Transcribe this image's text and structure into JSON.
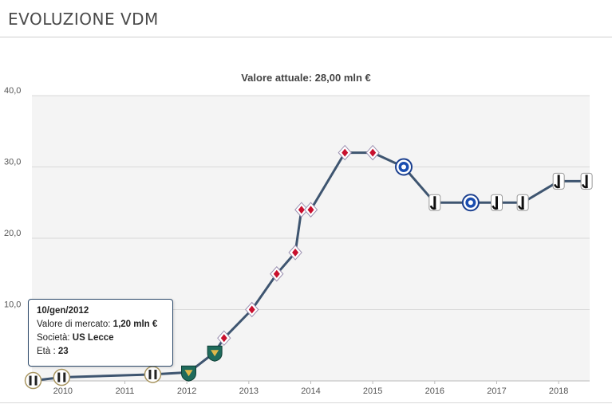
{
  "header": {
    "title": "EVOLUZIONE VDM"
  },
  "chart_data": {
    "type": "line",
    "title": "Valore attuale: 28,00 mln €",
    "xlabel": "",
    "ylabel": "",
    "ylim": [
      0,
      40
    ],
    "xlim": [
      2009.5,
      2018.5
    ],
    "grid": true,
    "y_ticks": [
      {
        "value": 10,
        "label": "10,0"
      },
      {
        "value": 20,
        "label": "20,0"
      },
      {
        "value": 30,
        "label": "30,0"
      },
      {
        "value": 40,
        "label": "40,0"
      }
    ],
    "x_ticks": [
      {
        "value": 2010,
        "label": "2010"
      },
      {
        "value": 2011,
        "label": "2011"
      },
      {
        "value": 2012,
        "label": "2012"
      },
      {
        "value": 2013,
        "label": "2013"
      },
      {
        "value": 2014,
        "label": "2014"
      },
      {
        "value": 2015,
        "label": "2015"
      },
      {
        "value": 2016,
        "label": "2016"
      },
      {
        "value": 2017,
        "label": "2017"
      },
      {
        "value": 2018,
        "label": "2018"
      }
    ],
    "colors": {
      "line": "#3e5570",
      "grid": "#d9d9d9",
      "plot_bg": "#f4f4f4"
    },
    "points": [
      {
        "x": 2009.52,
        "y": 0.05,
        "club": "udinese"
      },
      {
        "x": 2009.98,
        "y": 0.5,
        "club": "udinese"
      },
      {
        "x": 2011.45,
        "y": 0.9,
        "club": "udinese"
      },
      {
        "x": 2012.03,
        "y": 1.2,
        "club": "lecce"
      },
      {
        "x": 2012.45,
        "y": 4.0,
        "club": "lecce"
      },
      {
        "x": 2012.6,
        "y": 6.0,
        "club": "fiorentina"
      },
      {
        "x": 2013.05,
        "y": 10.0,
        "club": "fiorentina"
      },
      {
        "x": 2013.45,
        "y": 15.0,
        "club": "fiorentina"
      },
      {
        "x": 2013.75,
        "y": 18.0,
        "club": "fiorentina"
      },
      {
        "x": 2013.85,
        "y": 24.0,
        "club": "fiorentina"
      },
      {
        "x": 2014.0,
        "y": 24.0,
        "club": "fiorentina"
      },
      {
        "x": 2014.55,
        "y": 32.0,
        "club": "fiorentina"
      },
      {
        "x": 2015.0,
        "y": 32.0,
        "club": "fiorentina"
      },
      {
        "x": 2015.5,
        "y": 30.0,
        "club": "chelsea"
      },
      {
        "x": 2016.0,
        "y": 25.0,
        "club": "juventus"
      },
      {
        "x": 2016.58,
        "y": 25.0,
        "club": "chelsea"
      },
      {
        "x": 2017.0,
        "y": 25.0,
        "club": "juventus"
      },
      {
        "x": 2017.42,
        "y": 25.0,
        "club": "juventus"
      },
      {
        "x": 2018.0,
        "y": 28.0,
        "club": "juventus"
      },
      {
        "x": 2018.45,
        "y": 28.0,
        "club": "juventus"
      }
    ],
    "tooltip": {
      "date": "10/gen/2012",
      "value_label": "Valore di mercato:",
      "value": "1,20 mln €",
      "club_label": "Società:",
      "club": "US Lecce",
      "age_label": "Età :",
      "age": "23"
    }
  }
}
